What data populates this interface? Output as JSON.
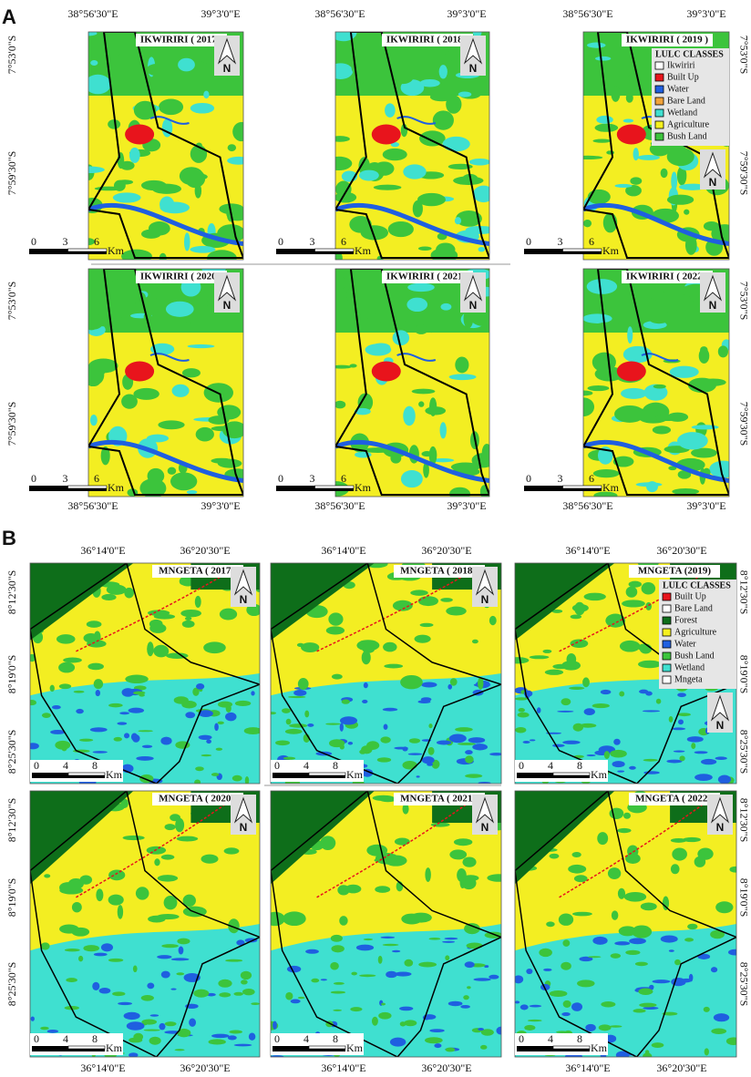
{
  "panels": [
    {
      "label": "A",
      "x_labels": [
        "38°56'30\"E",
        "39°3'0\"E"
      ],
      "y_labels": [
        "7°53'0\"S",
        "7°59'30\"S"
      ],
      "scale": [
        "0",
        "3",
        "6"
      ],
      "unit": "Km",
      "north": "N",
      "maps": [
        "IKWIRIRI ( 2017 )",
        "IKWIRIRI ( 2018 )",
        "IKWIRIRI ( 2019 )",
        "IKWIRIRI ( 2020 )",
        "IKWIRIRI ( 2021 )",
        "IKWIRIRI ( 2022 )"
      ],
      "legend": {
        "title": "LULC CLASSES",
        "items": [
          {
            "name": "Ikwiriri",
            "color": "#ffffff"
          },
          {
            "name": "Built Up",
            "color": "#e8141c"
          },
          {
            "name": "Water",
            "color": "#1f5fe0"
          },
          {
            "name": "Bare Land",
            "color": "#f2a33a"
          },
          {
            "name": "Wetland",
            "color": "#3fe0d0"
          },
          {
            "name": "Agriculture",
            "color": "#f5f01e"
          },
          {
            "name": "Bush Land",
            "color": "#3cc43c"
          }
        ]
      }
    },
    {
      "label": "B",
      "x_labels": [
        "36°14'0\"E",
        "36°20'30\"E"
      ],
      "y_labels": [
        "8°12'30\"S",
        "8°19'0\"S",
        "8°25'30\"S"
      ],
      "scale": [
        "0",
        "4",
        "8"
      ],
      "unit": "Km",
      "north": "N",
      "maps": [
        "MNGETA ( 2017 )",
        "MNGETA ( 2018 )",
        "MNGETA (2019)",
        "MNGETA ( 2020 )",
        "MNGETA ( 2021 )",
        "MNGETA ( 2022 )"
      ],
      "legend": {
        "title": "LULC CLASSES",
        "items": [
          {
            "name": "Built Up",
            "color": "#e8141c"
          },
          {
            "name": "Bare Land",
            "color": "#ffffff"
          },
          {
            "name": "Forest",
            "color": "#0e6e1a"
          },
          {
            "name": "Agriculture",
            "color": "#f5f01e"
          },
          {
            "name": "Water",
            "color": "#1f5fe0"
          },
          {
            "name": "Bush Land",
            "color": "#3cc43c"
          },
          {
            "name": "Wetland",
            "color": "#3fe0d0"
          },
          {
            "name": "Mngeta",
            "color": "#ffffff"
          }
        ]
      }
    }
  ]
}
